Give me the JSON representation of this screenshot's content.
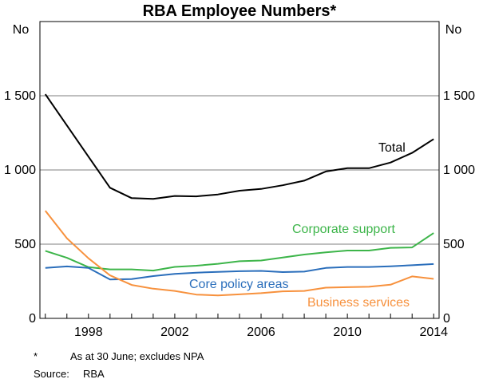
{
  "chart_data": {
    "type": "line",
    "title": "RBA Employee Numbers*",
    "ylabel_left": "No",
    "ylabel_right": "No",
    "ylim": [
      0,
      2000
    ],
    "xlim": [
      1995.75,
      2014.25
    ],
    "y_ticks": [
      0,
      500,
      1000,
      1500
    ],
    "y_tick_labels": [
      "0",
      "500",
      "1 000",
      "1 500"
    ],
    "x_ticks": [
      1998,
      2002,
      2006,
      2010,
      2014
    ],
    "x_tick_labels": [
      "1998",
      "2002",
      "2006",
      "2010",
      "2014"
    ],
    "grid": true,
    "x": [
      1996,
      1997,
      1998,
      1999,
      2000,
      2001,
      2002,
      2003,
      2004,
      2005,
      2006,
      2007,
      2008,
      2009,
      2010,
      2011,
      2012,
      2013,
      2014
    ],
    "series": [
      {
        "name": "Total",
        "color": "#000000",
        "values": [
          1510,
          1300,
          1090,
          880,
          810,
          805,
          825,
          822,
          835,
          860,
          872,
          897,
          928,
          990,
          1012,
          1012,
          1050,
          1115,
          1208
        ]
      },
      {
        "name": "Corporate support",
        "color": "#3db54a",
        "values": [
          455,
          408,
          345,
          330,
          330,
          322,
          347,
          355,
          368,
          385,
          390,
          410,
          430,
          445,
          457,
          457,
          475,
          478,
          575
        ]
      },
      {
        "name": "Core policy areas",
        "color": "#2a6ebb",
        "values": [
          340,
          350,
          340,
          262,
          265,
          285,
          300,
          308,
          313,
          318,
          320,
          312,
          315,
          340,
          346,
          346,
          351,
          358,
          366
        ]
      },
      {
        "name": "Business services",
        "color": "#f7913d",
        "values": [
          725,
          540,
          405,
          290,
          225,
          200,
          185,
          160,
          155,
          162,
          170,
          182,
          185,
          207,
          210,
          213,
          227,
          283,
          266
        ]
      }
    ]
  },
  "notes": {
    "footnote_mark": "*",
    "footnote_text": "As at 30 June; excludes NPA",
    "source_label": "Source:",
    "source_text": "RBA"
  }
}
